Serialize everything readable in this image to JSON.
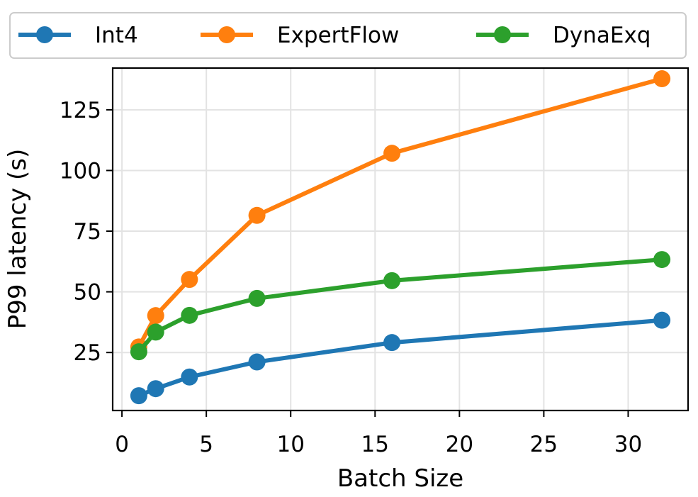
{
  "chart_data": {
    "type": "line",
    "xlabel": "Batch Size",
    "ylabel": "P99 latency (s)",
    "xlim": [
      -0.55,
      33.55
    ],
    "ylim": [
      1.1,
      142.2
    ],
    "xticks": [
      0,
      5,
      10,
      15,
      20,
      25,
      30
    ],
    "yticks": [
      25,
      50,
      75,
      100,
      125
    ],
    "grid": true,
    "legend_position": "top",
    "series": [
      {
        "name": "Int4",
        "color": "#1f77b4",
        "x": [
          1,
          2,
          4,
          8,
          16,
          32
        ],
        "y": [
          7.2,
          10.1,
          14.9,
          21.1,
          29.1,
          38.3
        ]
      },
      {
        "name": "ExpertFlow",
        "color": "#ff7f0e",
        "x": [
          1,
          2,
          4,
          8,
          16,
          32
        ],
        "y": [
          27.3,
          40.2,
          55.1,
          81.5,
          107.1,
          137.8
        ]
      },
      {
        "name": "DynaExq",
        "color": "#2ca02c",
        "x": [
          1,
          2,
          4,
          8,
          16,
          32
        ],
        "y": [
          25.3,
          33.4,
          40.3,
          47.3,
          54.6,
          63.3
        ]
      }
    ]
  }
}
